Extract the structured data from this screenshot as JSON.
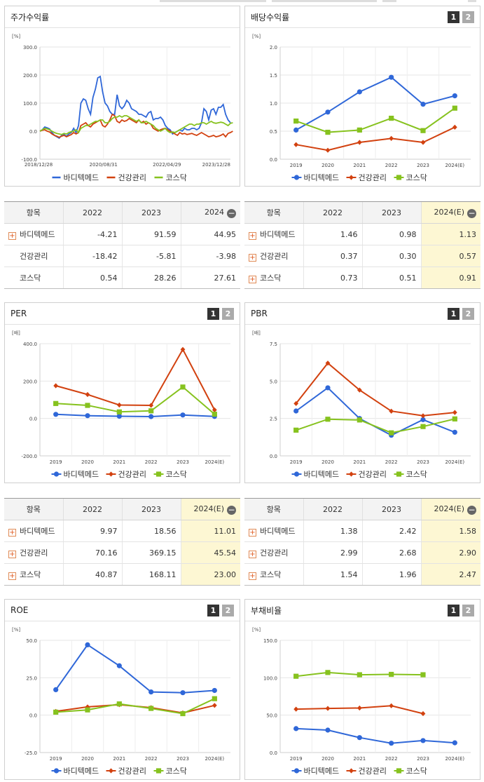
{
  "legend_names": [
    "바디텍메드",
    "건강관리",
    "코스닥"
  ],
  "colors": {
    "s0": "#2f67d8",
    "s1": "#d2410f",
    "s2": "#86c21e"
  },
  "pager": {
    "p1": "1",
    "p2": "2"
  },
  "charts": {
    "stock": {
      "title": "주가수익률",
      "chart_data": {
        "type": "line",
        "unit": "[%]",
        "ylim": [
          -100,
          300
        ],
        "yticks": [
          "300.0",
          "200.0",
          "100.0",
          "0.0",
          "-100.0"
        ],
        "xticks": [
          "2018/12/28",
          "2020/08/31",
          "2022/04/29",
          "2023/12/28"
        ],
        "series": [
          {
            "name": "바디텍메드",
            "values": [
              0,
              5,
              15,
              12,
              8,
              -5,
              -15,
              -20,
              -25,
              -15,
              -12,
              -18,
              -10,
              -5,
              10,
              -5,
              20,
              100,
              115,
              110,
              80,
              60,
              120,
              150,
              190,
              195,
              140,
              100,
              90,
              70,
              60,
              60,
              130,
              90,
              80,
              90,
              110,
              100,
              80,
              75,
              70,
              60,
              60,
              55,
              50,
              65,
              70,
              40,
              45,
              45,
              50,
              40,
              20,
              10,
              5,
              -10,
              -5,
              0,
              5,
              0,
              10,
              5,
              5,
              10,
              10,
              5,
              10,
              30,
              80,
              70,
              40,
              75,
              80,
              60,
              85,
              85,
              95,
              60,
              40,
              30
            ]
          },
          {
            "name": "건강관리",
            "values": [
              0,
              3,
              5,
              0,
              -3,
              -10,
              -15,
              -18,
              -22,
              -18,
              -15,
              -20,
              -16,
              -12,
              -5,
              -10,
              -5,
              20,
              25,
              30,
              20,
              15,
              25,
              30,
              35,
              40,
              20,
              15,
              25,
              40,
              60,
              55,
              35,
              30,
              40,
              35,
              38,
              45,
              40,
              35,
              30,
              40,
              30,
              35,
              25,
              30,
              25,
              10,
              5,
              0,
              5,
              8,
              10,
              5,
              0,
              -5,
              -10,
              -15,
              -5,
              -10,
              -8,
              -12,
              -10,
              -8,
              -12,
              -15,
              -10,
              -5,
              -10,
              -15,
              -20,
              -18,
              -15,
              -20,
              -18,
              -15,
              -10,
              -20,
              -8,
              -5,
              0
            ]
          },
          {
            "name": "코스닥",
            "values": [
              0,
              5,
              10,
              8,
              5,
              0,
              -5,
              -8,
              -10,
              -12,
              -8,
              -10,
              -5,
              -2,
              0,
              5,
              -5,
              10,
              15,
              20,
              20,
              25,
              30,
              35,
              35,
              40,
              40,
              30,
              30,
              35,
              45,
              50,
              50,
              55,
              50,
              55,
              55,
              50,
              45,
              40,
              35,
              40,
              30,
              30,
              35,
              30,
              25,
              20,
              10,
              5,
              0,
              5,
              10,
              0,
              -5,
              -3,
              -5,
              0,
              5,
              10,
              15,
              20,
              25,
              25,
              20,
              25,
              25,
              30,
              30,
              25,
              30,
              35,
              30,
              28,
              30,
              32,
              30,
              25,
              20,
              28,
              30
            ]
          }
        ]
      }
    },
    "div": {
      "title": "배당수익률",
      "chart_data": {
        "type": "line",
        "unit": "[%]",
        "ylim": [
          0,
          2.0
        ],
        "yticks": [
          "2.0",
          "1.5",
          "1.0",
          "0.5",
          "0.0"
        ],
        "categories": [
          "2019",
          "2020",
          "2021",
          "2022",
          "2023",
          "2024(E)"
        ],
        "series": [
          {
            "name": "바디텍메드",
            "values": [
              0.52,
              0.84,
              1.2,
              1.46,
              0.98,
              1.13
            ]
          },
          {
            "name": "건강관리",
            "values": [
              0.26,
              0.16,
              0.3,
              0.37,
              0.3,
              0.57
            ]
          },
          {
            "name": "코스닥",
            "values": [
              0.68,
              0.48,
              0.52,
              0.73,
              0.51,
              0.91
            ]
          }
        ]
      }
    },
    "per": {
      "title": "PER",
      "chart_data": {
        "type": "line",
        "unit": "[배]",
        "ylim": [
          -200,
          400
        ],
        "yticks": [
          "400.0",
          "200.0",
          "0.0",
          "-200.0"
        ],
        "categories": [
          "2019",
          "2020",
          "2021",
          "2022",
          "2023",
          "2024(E)"
        ],
        "series": [
          {
            "name": "바디텍메드",
            "values": [
              22,
              15,
              12,
              9.97,
              18.56,
              11.01
            ]
          },
          {
            "name": "건강관리",
            "values": [
              175,
              128,
              72,
              70.16,
              369.15,
              45.54
            ]
          },
          {
            "name": "코스닥",
            "values": [
              80,
              70,
              35,
              40.87,
              168.11,
              23.0
            ]
          }
        ]
      }
    },
    "pbr": {
      "title": "PBR",
      "chart_data": {
        "type": "line",
        "unit": "[배]",
        "ylim": [
          0,
          7.5
        ],
        "yticks": [
          "7.5",
          "5.0",
          "2.5",
          "0.0"
        ],
        "categories": [
          "2019",
          "2020",
          "2021",
          "2022",
          "2023",
          "2024(E)"
        ],
        "series": [
          {
            "name": "바디텍메드",
            "values": [
              3.0,
              4.55,
              2.5,
              1.38,
              2.42,
              1.58
            ]
          },
          {
            "name": "건강관리",
            "values": [
              3.5,
              6.2,
              4.4,
              2.99,
              2.68,
              2.9
            ]
          },
          {
            "name": "코스닥",
            "values": [
              1.72,
              2.45,
              2.4,
              1.54,
              1.96,
              2.47
            ]
          }
        ]
      }
    },
    "roe": {
      "title": "ROE",
      "chart_data": {
        "type": "line",
        "unit": "[%]",
        "ylim": [
          -25,
          50
        ],
        "yticks": [
          "50.0",
          "25.0",
          "0.0",
          "-25.0"
        ],
        "categories": [
          "2019",
          "2020",
          "2021",
          "2022",
          "2023",
          "2024(E)"
        ],
        "series": [
          {
            "name": "바디텍메드",
            "values": [
              17,
              47,
              33,
              15.5,
              15,
              16.5
            ]
          },
          {
            "name": "건강관리",
            "values": [
              2.5,
              5.5,
              7,
              5,
              1.5,
              6.5
            ]
          },
          {
            "name": "코스닥",
            "values": [
              2,
              3.5,
              7.5,
              4.5,
              1,
              11
            ]
          }
        ]
      }
    },
    "debt": {
      "title": "부채비율",
      "chart_data": {
        "type": "line",
        "unit": "[%]",
        "ylim": [
          0,
          150
        ],
        "yticks": [
          "150.0",
          "100.0",
          "50.0",
          "0.0"
        ],
        "categories": [
          "2019",
          "2020",
          "2021",
          "2022",
          "2023",
          "2024(E)"
        ],
        "series": [
          {
            "name": "바디텍메드",
            "values": [
              32,
              30,
              20,
              12.5,
              16,
              13
            ]
          },
          {
            "name": "건강관리",
            "values": [
              58,
              59,
              59.5,
              62.5,
              52,
              null
            ]
          },
          {
            "name": "코스닥",
            "values": [
              102,
              107,
              104,
              104.5,
              104,
              null
            ]
          }
        ]
      }
    }
  },
  "tables": {
    "stock": {
      "header": [
        "항목",
        "2022",
        "2023",
        "2024"
      ],
      "rows": [
        {
          "name": "바디텍메드",
          "plus": true,
          "v": [
            "-4.21",
            "91.59",
            "44.95"
          ]
        },
        {
          "name": "건강관리",
          "plus": false,
          "v": [
            "-18.42",
            "-5.81",
            "-3.98"
          ]
        },
        {
          "name": "코스닥",
          "plus": false,
          "v": [
            "0.54",
            "28.26",
            "27.61"
          ]
        }
      ]
    },
    "div": {
      "header": [
        "항목",
        "2022",
        "2023",
        "2024(E)"
      ],
      "rows": [
        {
          "name": "바디텍메드",
          "plus": true,
          "v": [
            "1.46",
            "0.98",
            "1.13"
          ]
        },
        {
          "name": "건강관리",
          "plus": true,
          "v": [
            "0.37",
            "0.30",
            "0.57"
          ]
        },
        {
          "name": "코스닥",
          "plus": true,
          "v": [
            "0.73",
            "0.51",
            "0.91"
          ]
        }
      ]
    },
    "per": {
      "header": [
        "항목",
        "2022",
        "2023",
        "2024(E)"
      ],
      "rows": [
        {
          "name": "바디텍메드",
          "plus": true,
          "v": [
            "9.97",
            "18.56",
            "11.01"
          ]
        },
        {
          "name": "건강관리",
          "plus": true,
          "v": [
            "70.16",
            "369.15",
            "45.54"
          ]
        },
        {
          "name": "코스닥",
          "plus": true,
          "v": [
            "40.87",
            "168.11",
            "23.00"
          ]
        }
      ]
    },
    "pbr": {
      "header": [
        "항목",
        "2022",
        "2023",
        "2024(E)"
      ],
      "rows": [
        {
          "name": "바디텍메드",
          "plus": true,
          "v": [
            "1.38",
            "2.42",
            "1.58"
          ]
        },
        {
          "name": "건강관리",
          "plus": true,
          "v": [
            "2.99",
            "2.68",
            "2.90"
          ]
        },
        {
          "name": "코스닥",
          "plus": true,
          "v": [
            "1.54",
            "1.96",
            "2.47"
          ]
        }
      ]
    }
  }
}
